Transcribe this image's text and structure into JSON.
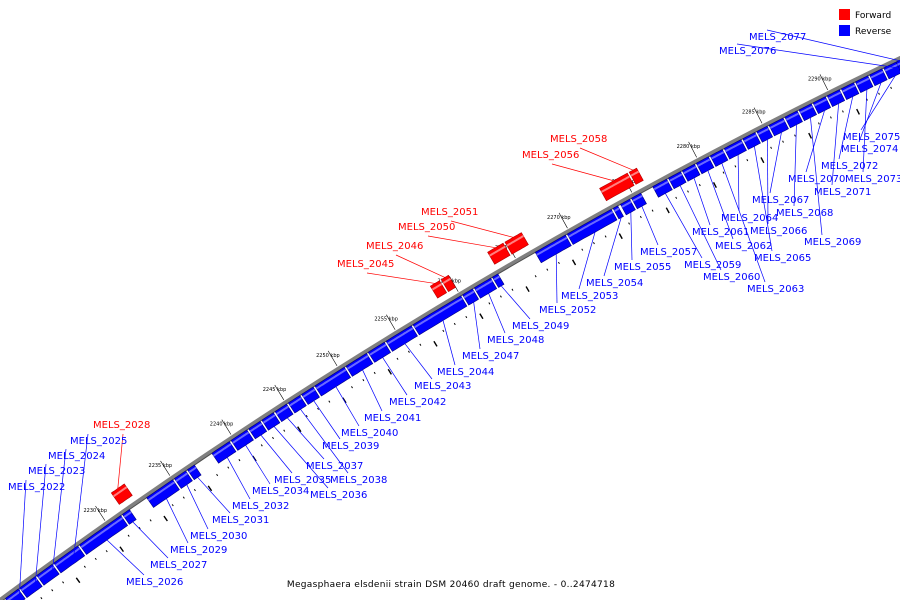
{
  "caption": "Megasphaera elsdenii strain DSM 20460 draft genome. - 0..2474718",
  "legend": {
    "forward_label": "Forward",
    "reverse_label": "Reverse",
    "forward_color": "#ff0000",
    "reverse_color": "#0000ff"
  },
  "backbone_color": "#808080",
  "kbp_ticks": [
    "2230 kbp",
    "2235 kbp",
    "2240 kbp",
    "2245 kbp",
    "2250 kbp",
    "2255 kbp",
    "2260 kbp",
    "2265 kbp",
    "2270 kbp",
    "2275 kbp",
    "2280 kbp",
    "2285 kbp",
    "2290 kbp"
  ],
  "genes": [
    {
      "name": "MELS_2022",
      "strand": "reverse"
    },
    {
      "name": "MELS_2023",
      "strand": "reverse"
    },
    {
      "name": "MELS_2024",
      "strand": "reverse"
    },
    {
      "name": "MELS_2025",
      "strand": "reverse"
    },
    {
      "name": "MELS_2026",
      "strand": "reverse"
    },
    {
      "name": "MELS_2027",
      "strand": "reverse"
    },
    {
      "name": "MELS_2028",
      "strand": "forward"
    },
    {
      "name": "MELS_2029",
      "strand": "reverse"
    },
    {
      "name": "MELS_2030",
      "strand": "reverse"
    },
    {
      "name": "MELS_2031",
      "strand": "reverse"
    },
    {
      "name": "MELS_2032",
      "strand": "reverse"
    },
    {
      "name": "MELS_2034",
      "strand": "reverse"
    },
    {
      "name": "MELS_2035",
      "strand": "reverse"
    },
    {
      "name": "MELS_2036",
      "strand": "reverse"
    },
    {
      "name": "MELS_2037",
      "strand": "reverse"
    },
    {
      "name": "MELS_2038",
      "strand": "reverse"
    },
    {
      "name": "MELS_2039",
      "strand": "reverse"
    },
    {
      "name": "MELS_2040",
      "strand": "reverse"
    },
    {
      "name": "MELS_2041",
      "strand": "reverse"
    },
    {
      "name": "MELS_2042",
      "strand": "reverse"
    },
    {
      "name": "MELS_2043",
      "strand": "reverse"
    },
    {
      "name": "MELS_2044",
      "strand": "reverse"
    },
    {
      "name": "MELS_2045",
      "strand": "forward"
    },
    {
      "name": "MELS_2046",
      "strand": "forward"
    },
    {
      "name": "MELS_2047",
      "strand": "reverse"
    },
    {
      "name": "MELS_2048",
      "strand": "reverse"
    },
    {
      "name": "MELS_2049",
      "strand": "reverse"
    },
    {
      "name": "MELS_2050",
      "strand": "forward"
    },
    {
      "name": "MELS_2051",
      "strand": "forward"
    },
    {
      "name": "MELS_2052",
      "strand": "reverse"
    },
    {
      "name": "MELS_2053",
      "strand": "reverse"
    },
    {
      "name": "MELS_2054",
      "strand": "reverse"
    },
    {
      "name": "MELS_2055",
      "strand": "reverse"
    },
    {
      "name": "MELS_2056",
      "strand": "forward"
    },
    {
      "name": "MELS_2057",
      "strand": "reverse"
    },
    {
      "name": "MELS_2058",
      "strand": "forward"
    },
    {
      "name": "MELS_2059",
      "strand": "reverse"
    },
    {
      "name": "MELS_2060",
      "strand": "reverse"
    },
    {
      "name": "MELS_2061",
      "strand": "reverse"
    },
    {
      "name": "MELS_2062",
      "strand": "reverse"
    },
    {
      "name": "MELS_2063",
      "strand": "reverse"
    },
    {
      "name": "MELS_2064",
      "strand": "reverse"
    },
    {
      "name": "MELS_2065",
      "strand": "reverse"
    },
    {
      "name": "MELS_2066",
      "strand": "reverse"
    },
    {
      "name": "MELS_2067",
      "strand": "reverse"
    },
    {
      "name": "MELS_2068",
      "strand": "reverse"
    },
    {
      "name": "MELS_2069",
      "strand": "reverse"
    },
    {
      "name": "MELS_2070",
      "strand": "reverse"
    },
    {
      "name": "MELS_2071",
      "strand": "reverse"
    },
    {
      "name": "MELS_2072",
      "strand": "reverse"
    },
    {
      "name": "MELS_2073",
      "strand": "reverse"
    },
    {
      "name": "MELS_2074",
      "strand": "reverse"
    },
    {
      "name": "MELS_2075",
      "strand": "reverse"
    },
    {
      "name": "MELS_2076",
      "strand": "reverse"
    },
    {
      "name": "MELS_2077",
      "strand": "reverse"
    }
  ]
}
